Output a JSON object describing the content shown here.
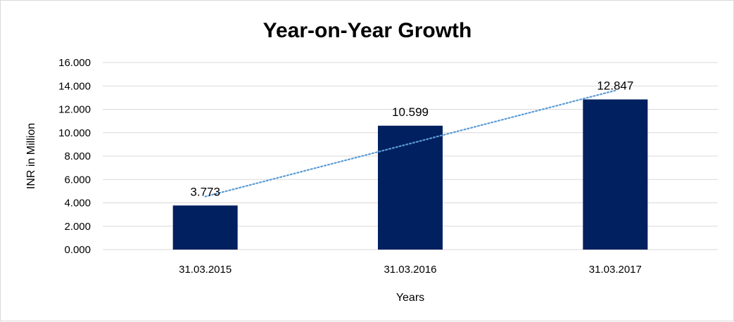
{
  "chart_data": {
    "type": "bar",
    "title": "Year-on-Year Growth",
    "xlabel": "Years",
    "ylabel": "INR in Million",
    "categories": [
      "31.03.2015",
      "31.03.2016",
      "31.03.2017"
    ],
    "values": [
      3.773,
      10.599,
      12.847
    ],
    "data_labels": [
      "3.773",
      "10.599",
      "12.847"
    ],
    "ylim": [
      0,
      16
    ],
    "yticks": [
      0,
      2,
      4,
      6,
      8,
      10,
      12,
      14,
      16
    ],
    "ytick_labels": [
      "0.000",
      "2.000",
      "4.000",
      "6.000",
      "8.000",
      "10.000",
      "12.000",
      "14.000",
      "16.000"
    ],
    "grid": true,
    "legend": "none",
    "trendline": {
      "type": "linear",
      "style": "dotted"
    },
    "colors": {
      "bar": "#002060",
      "trendline": "#5b9bd5",
      "grid": "#d9d9d9"
    }
  }
}
